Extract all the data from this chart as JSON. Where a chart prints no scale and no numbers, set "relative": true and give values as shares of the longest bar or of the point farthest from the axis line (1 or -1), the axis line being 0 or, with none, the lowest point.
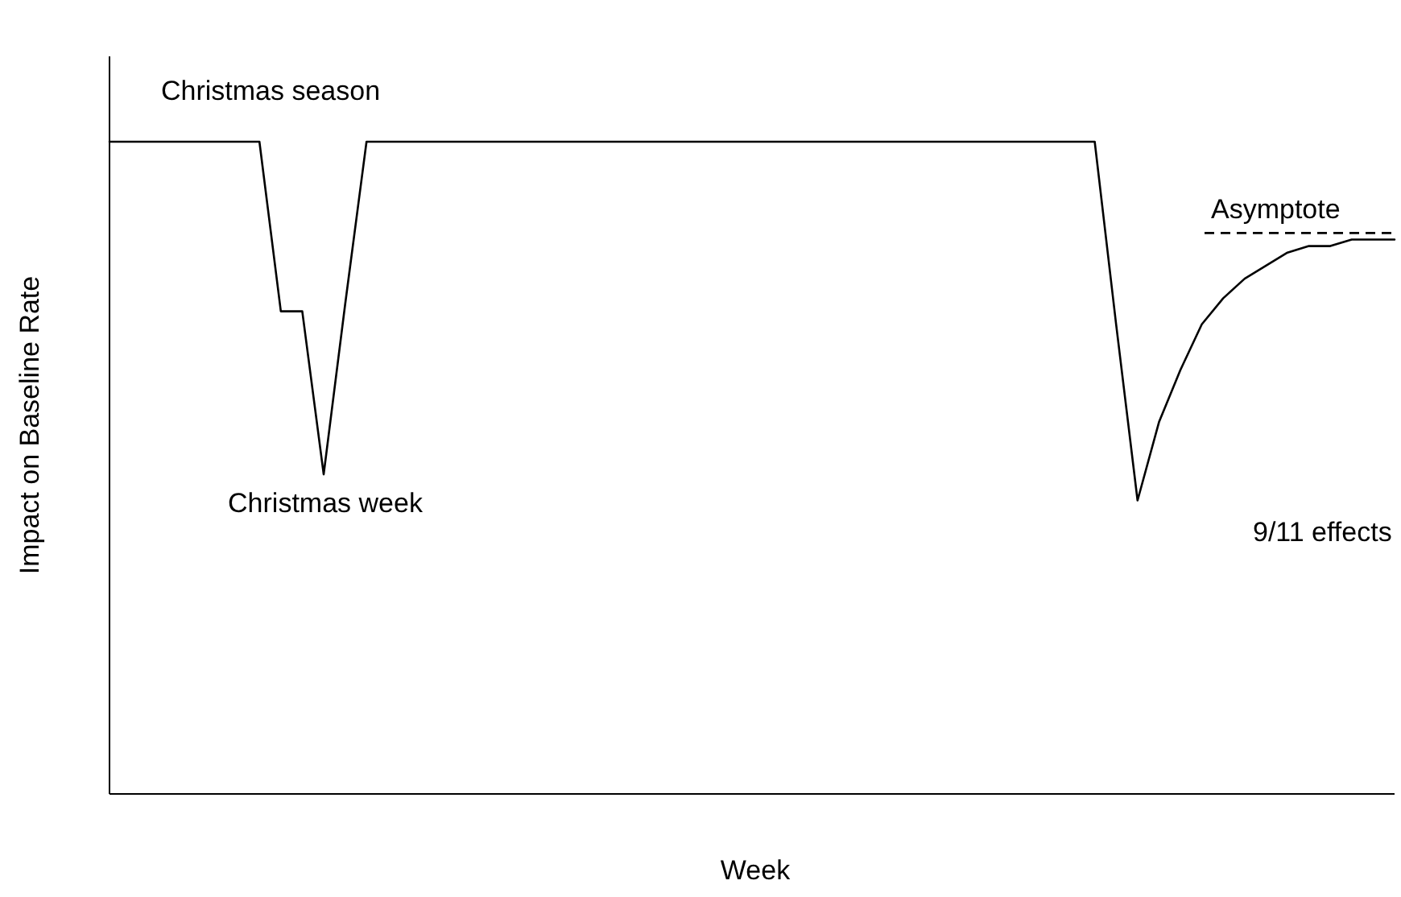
{
  "chart_data": {
    "type": "line",
    "relative": true,
    "xlabel": "Week",
    "ylabel": "Impact on Baseline Rate",
    "categories": [
      null,
      null,
      null,
      null,
      null,
      null,
      null,
      null,
      null,
      null,
      null,
      null,
      null,
      null,
      null,
      null,
      null,
      null,
      null,
      null,
      null,
      null,
      null,
      null,
      null,
      null,
      null,
      null,
      null,
      null,
      null,
      null,
      null,
      null,
      null,
      null,
      null,
      null,
      null,
      null,
      null,
      null,
      null,
      null,
      null,
      null,
      null,
      null,
      null,
      null,
      null,
      null,
      null,
      null,
      null,
      null,
      null,
      null,
      null,
      null,
      null
    ],
    "series": [
      {
        "color": "#000000",
        "values": [
          1,
          1,
          1,
          1,
          1,
          1,
          1,
          1,
          0.74,
          0.74,
          0.49,
          0.75,
          1,
          1,
          1,
          1,
          1,
          1,
          1,
          1,
          1,
          1,
          1,
          1,
          1,
          1,
          1,
          1,
          1,
          1,
          1,
          1,
          1,
          1,
          1,
          1,
          1,
          1,
          1,
          1,
          1,
          1,
          1,
          1,
          1,
          1,
          1,
          0.72,
          0.45,
          0.57,
          0.65,
          0.72,
          0.76,
          0.79,
          0.81,
          0.83,
          0.84,
          0.84,
          0.85,
          0.85,
          0.85
        ]
      }
    ],
    "ref_lines": [
      {
        "axis": "y",
        "value": 0.86,
        "label": "Asymptote",
        "line_style": "dashed",
        "color": "#000000"
      }
    ],
    "annotations": [
      "Christmas season",
      "Christmas week",
      "9/11 effects"
    ],
    "marker": "none",
    "line_style": "solid"
  }
}
